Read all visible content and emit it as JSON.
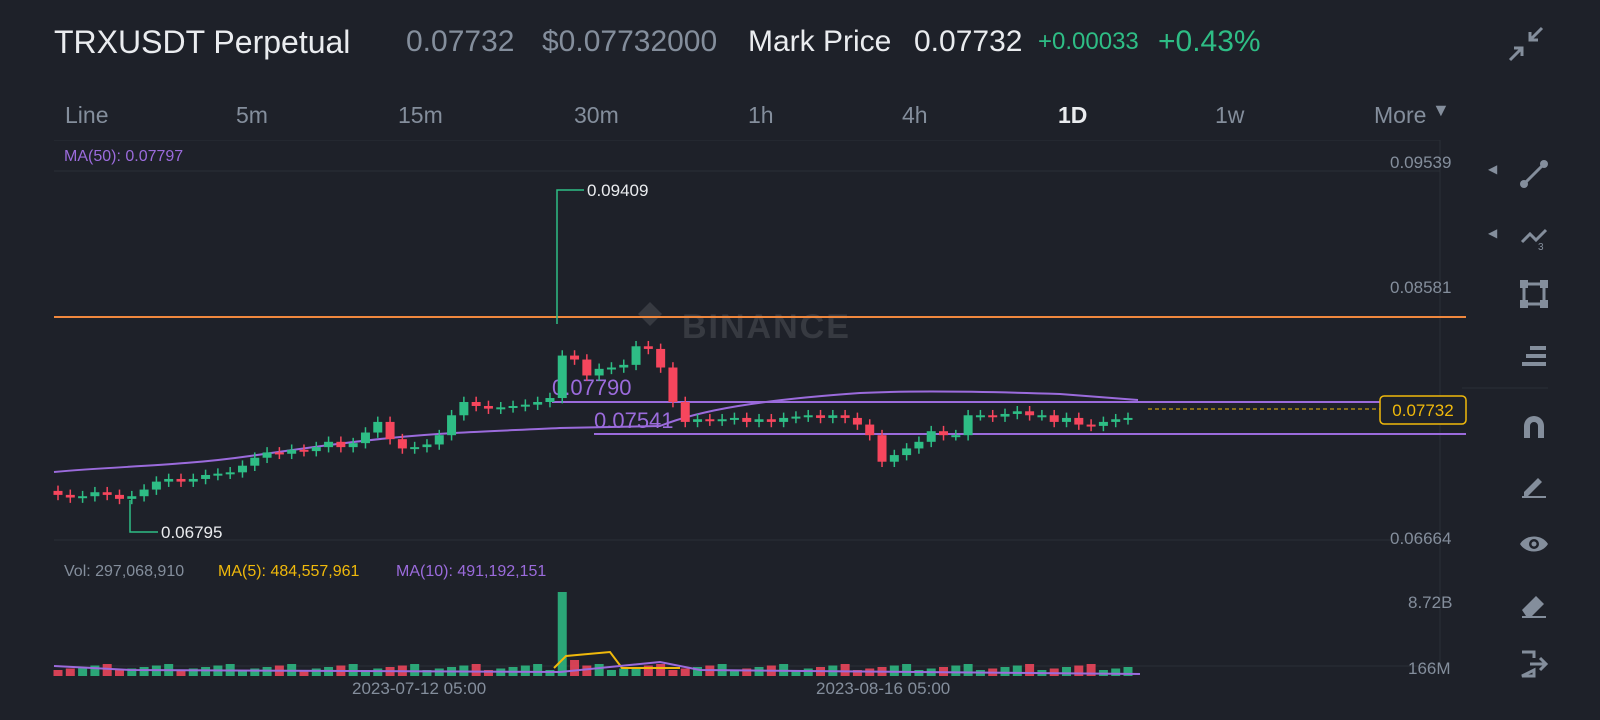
{
  "header": {
    "symbol": "TRXUSDT Perpetual",
    "last_price": "0.07732",
    "usd_price": "$0.07732000",
    "mark_label": "Mark Price",
    "mark_price": "0.07732",
    "change_abs": "+0.00033",
    "change_pct": "+0.43%"
  },
  "tabs": [
    "Line",
    "5m",
    "15m",
    "30m",
    "1h",
    "4h",
    "1D",
    "1w",
    "More"
  ],
  "active_tab": "1D",
  "indicators": {
    "ma50": "MA(50): 0.07797",
    "vol": "Vol: 297,068,910",
    "vol_ma5": "MA(5): 484,557,961",
    "vol_ma10": "MA(10): 491,192,151"
  },
  "annotations": {
    "high": "0.09409",
    "low": "0.06795",
    "level_upper": "0.07790",
    "level_lower": "0.07541",
    "current_price": "0.07732",
    "watermark": "BINANCE"
  },
  "price_axis": [
    "0.09539",
    "0.08581",
    "0.06664"
  ],
  "volume_axis": [
    "8.72B",
    "166M"
  ],
  "date_axis": [
    "2023-07-12 05:00",
    "2023-08-16 05:00"
  ],
  "colors": {
    "up": "#2ebd85",
    "down": "#f6465d",
    "ma": "#9b6bdc",
    "ma5": "#f0b90b",
    "resistance": "#f0883e",
    "background": "#1e2129"
  },
  "tools": [
    "trend-line-icon",
    "fibonacci-icon",
    "rectangle-icon",
    "text-lines-icon",
    "magnet-icon",
    "pencil-icon",
    "eye-icon",
    "eraser-icon",
    "exit-icon"
  ]
}
